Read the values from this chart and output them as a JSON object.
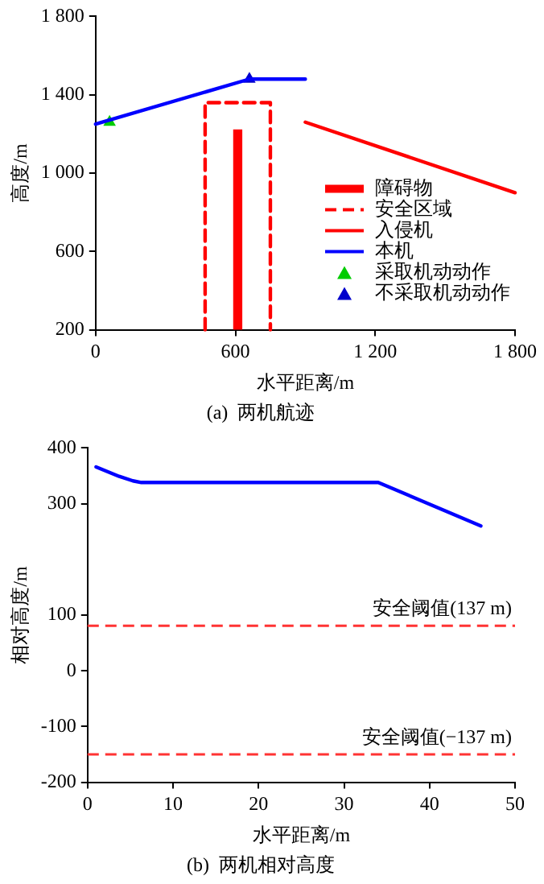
{
  "chart_data": [
    {
      "type": "line",
      "title": "(a)  两机航迹",
      "xlabel": "水平距离/m",
      "ylabel": "高度/m",
      "xlim": [
        0,
        1800
      ],
      "xticks": [
        0,
        600,
        {
          "value": 1200,
          "label": "1 200"
        },
        {
          "value": 1800,
          "label": "1 800"
        }
      ],
      "ylim": [
        200,
        1800
      ],
      "yticks": [
        200,
        600,
        {
          "value": 1000,
          "label": "1 000"
        },
        {
          "value": 1400,
          "label": "1 400"
        },
        {
          "value": 1800,
          "label": "1 800"
        }
      ],
      "grid": false,
      "legend": "bottom right",
      "marker": "none",
      "series": [
        {
          "name": "障碍物",
          "type": "bar",
          "color": "#ff0000",
          "x": [
            610
          ],
          "values": [
            1220
          ]
        },
        {
          "name": "安全区域",
          "line_style": "dashed",
          "color": "#ff0000",
          "x": [
            470,
            470,
            750,
            750
          ],
          "values": [
            200,
            1360,
            1360,
            200
          ]
        },
        {
          "name": "入侵机",
          "color": "#ff0000",
          "x": [
            900,
            1800
          ],
          "values": [
            1260,
            900
          ]
        },
        {
          "name": "本机",
          "color": "#0000ff",
          "x": [
            0,
            660,
            900
          ],
          "values": [
            1250,
            1480,
            1480
          ]
        },
        {
          "name": "采取机动动作",
          "type": "scatter",
          "marker": "triangle",
          "color": "#00cc00",
          "x": [
            60
          ],
          "values": [
            1260
          ]
        },
        {
          "name": "不采取机动动作",
          "type": "scatter",
          "marker": "triangle",
          "color": "#0000cc",
          "x": [
            660
          ],
          "values": [
            1480
          ]
        }
      ]
    },
    {
      "type": "line",
      "title": "(b)  两机相对高度",
      "xlabel": "水平距离/m",
      "ylabel": "相对高度/m",
      "xlim": [
        0,
        50
      ],
      "xticks": [
        0,
        10,
        20,
        30,
        40,
        50
      ],
      "ylim": [
        -200,
        400
      ],
      "yticks": [
        -200,
        -100,
        0,
        100,
        300,
        400
      ],
      "grid": false,
      "legend": false,
      "marker": "none",
      "series": [
        {
          "color": "#0000ff",
          "x": [
            1,
            3.7,
            5.3,
            6.3,
            34,
            46
          ],
          "values": [
            366,
            349,
            341,
            338,
            338,
            260
          ]
        }
      ],
      "ref_lines": [
        {
          "axis": "y",
          "value": 81,
          "label": "安全阈值(137 m)",
          "color": "#ff3333",
          "line_style": "dashed"
        },
        {
          "axis": "y",
          "value": -150,
          "label": "安全阈值(−137 m)",
          "color": "#ff3333",
          "line_style": "dashed"
        }
      ]
    }
  ]
}
